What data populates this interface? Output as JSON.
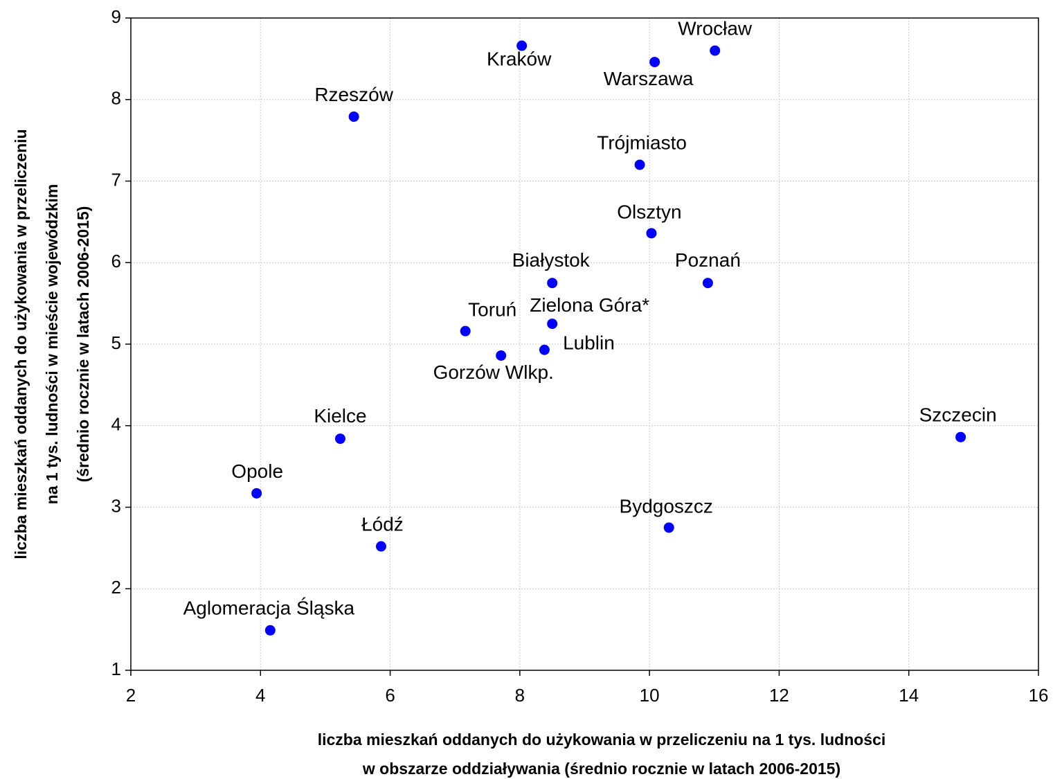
{
  "chart_data": {
    "type": "scatter",
    "x_label": [
      "liczba mieszkań oddanych do użykowania w przeliczeniu na 1 tys. ludności",
      "w obszarze oddziaływania (średnio rocznie w latach 2006-2015)"
    ],
    "y_label": [
      "liczba mieszkań oddanych do użykowania w przeliczeniu",
      "na 1 tys. ludności w mieście wojewódzkim",
      "(średnio rocznie w latach 2006-2015)"
    ],
    "point_labels": [
      "Kraków",
      "Wrocław",
      "Warszawa",
      "Rzeszów",
      "Trójmiasto",
      "Olsztyn",
      "Białystok",
      "Poznań",
      "Zielona Góra*",
      "Toruń",
      "Lublin",
      "Gorzów Wlkp.",
      "Kielce",
      "Szczecin",
      "Opole",
      "Bydgoszcz",
      "Łódź",
      "Aglomeracja Śląska"
    ],
    "x": [
      8.03,
      11.01,
      10.08,
      5.44,
      9.85,
      10.03,
      8.5,
      10.9,
      8.5,
      7.16,
      8.38,
      7.71,
      5.23,
      14.8,
      3.94,
      10.3,
      5.86,
      4.15
    ],
    "values": [
      8.66,
      8.6,
      8.46,
      7.79,
      7.2,
      6.36,
      5.75,
      5.75,
      5.25,
      5.16,
      4.93,
      4.86,
      3.84,
      3.86,
      3.17,
      2.75,
      2.52,
      1.49
    ],
    "color": "#0000ff",
    "xlim": [
      2,
      16
    ],
    "xticks": [
      2,
      4,
      6,
      8,
      10,
      12,
      14,
      16
    ],
    "ylim": [
      1,
      9
    ],
    "yticks": [
      1,
      2,
      3,
      4,
      5,
      6,
      7,
      8,
      9
    ],
    "grid": true
  }
}
